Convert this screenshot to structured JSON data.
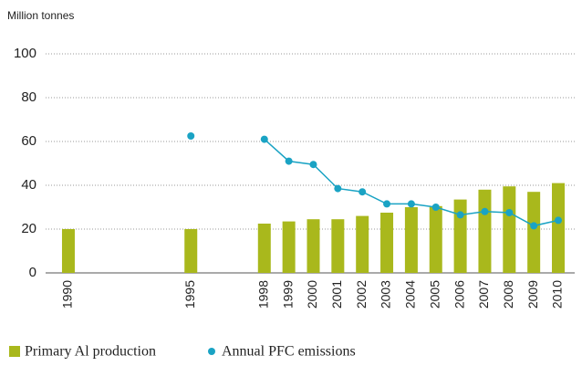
{
  "chart_data": {
    "type": "bar_line",
    "y_axis_label": "Million tonnes",
    "x": [
      1990,
      1995,
      1998,
      1999,
      2000,
      2001,
      2002,
      2003,
      2004,
      2005,
      2006,
      2007,
      2008,
      2009,
      2010
    ],
    "series": [
      {
        "name": "Primary Al production",
        "type": "bar",
        "color": "#a9b81c",
        "values": [
          20,
          20,
          22.5,
          23.5,
          24.5,
          24.5,
          26,
          27.5,
          30,
          30.5,
          33.5,
          38,
          39.5,
          37,
          41
        ]
      },
      {
        "name": "Annual PFC emissions",
        "type": "line",
        "color": "#1aa3c4",
        "values": [
          null,
          62.5,
          61,
          51,
          49.5,
          38.5,
          37,
          31.5,
          31.5,
          30,
          26.5,
          28,
          27.5,
          21.5,
          24
        ]
      }
    ],
    "xlim": [
      1989.07,
      2010.67
    ],
    "ylim": [
      0,
      100
    ],
    "yticks": [
      0,
      20,
      40,
      60,
      80,
      100
    ],
    "grid": true
  }
}
